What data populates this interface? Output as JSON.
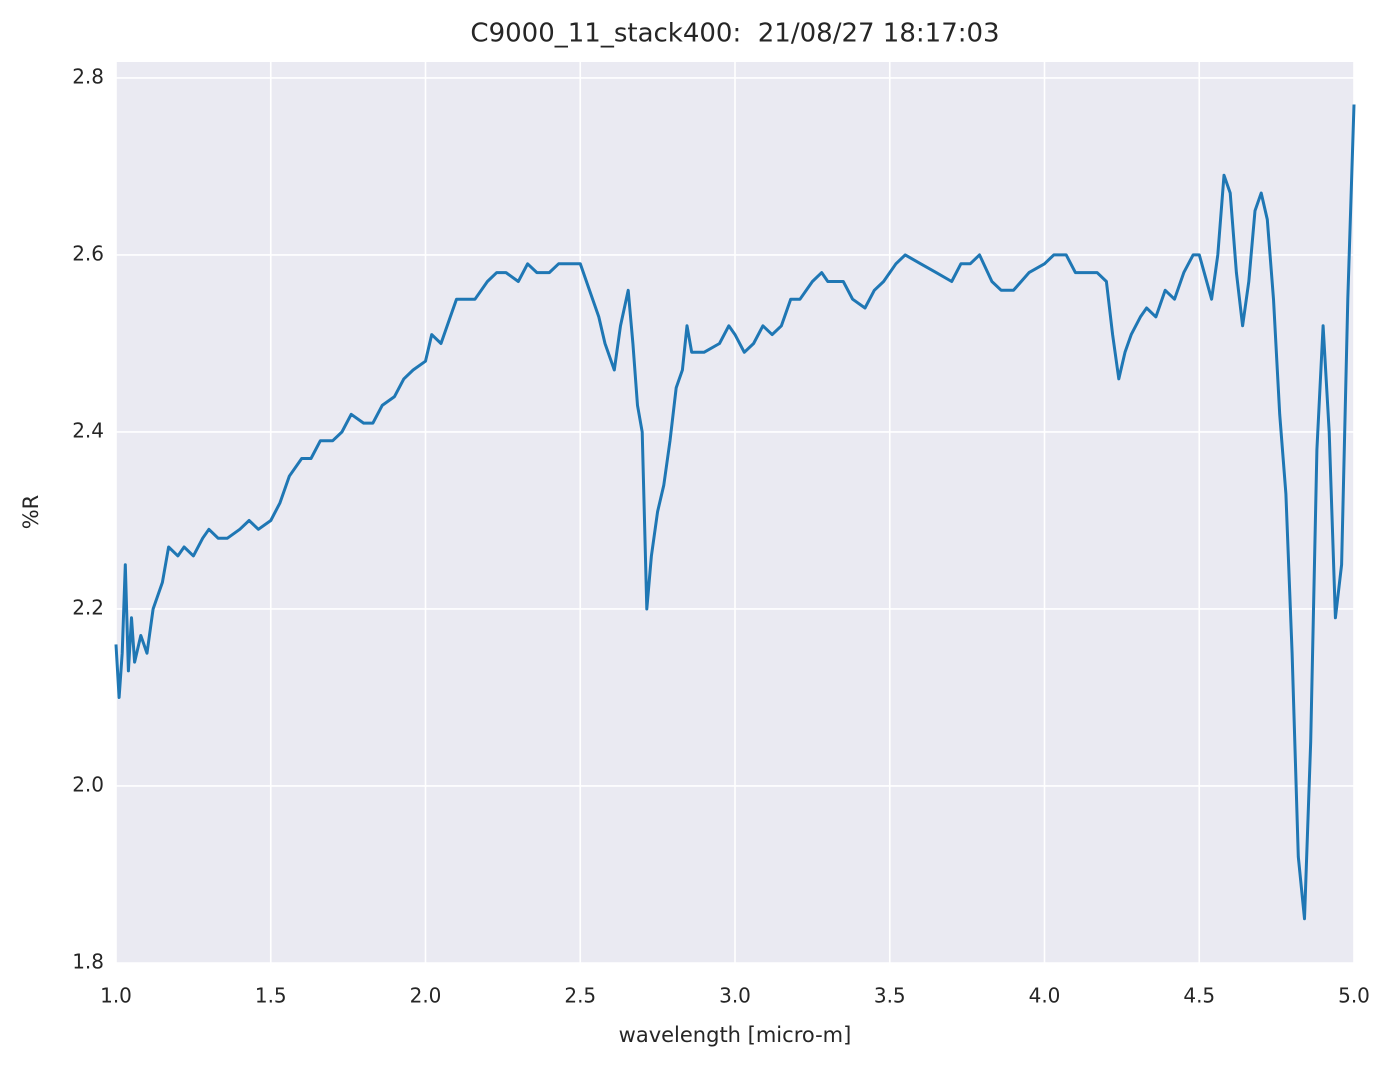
{
  "chart_data": {
    "type": "line",
    "title": "C9000_11_stack400:  21/08/27 18:17:03",
    "xlabel": "wavelength [micro-m]",
    "ylabel": "%R",
    "color": "#1f77b4",
    "grid": true,
    "xlim": [
      1.0,
      5.0
    ],
    "ylim": [
      1.8,
      2.818
    ],
    "xticks": [
      {
        "value": 1.0,
        "label": "1.0"
      },
      1.5,
      {
        "value": 2.0,
        "label": "2.0"
      },
      2.5,
      {
        "value": 3.0,
        "label": "3.0"
      },
      3.5,
      {
        "value": 4.0,
        "label": "4.0"
      },
      4.5,
      {
        "value": 5.0,
        "label": "5.0"
      }
    ],
    "yticks": [
      1.8,
      {
        "value": 2.0,
        "label": "2.0"
      },
      2.2,
      2.4,
      2.6,
      2.8
    ],
    "x": [
      1.0,
      1.01,
      1.02,
      1.03,
      1.04,
      1.05,
      1.06,
      1.08,
      1.1,
      1.12,
      1.15,
      1.17,
      1.2,
      1.22,
      1.25,
      1.28,
      1.3,
      1.33,
      1.36,
      1.4,
      1.43,
      1.46,
      1.5,
      1.53,
      1.56,
      1.6,
      1.63,
      1.66,
      1.7,
      1.73,
      1.76,
      1.8,
      1.83,
      1.86,
      1.9,
      1.93,
      1.96,
      2.0,
      2.02,
      2.05,
      2.08,
      2.1,
      2.13,
      2.16,
      2.2,
      2.23,
      2.26,
      2.3,
      2.33,
      2.36,
      2.4,
      2.43,
      2.46,
      2.5,
      2.53,
      2.56,
      2.58,
      2.61,
      2.63,
      2.655,
      2.67,
      2.685,
      2.7,
      2.715,
      2.73,
      2.75,
      2.77,
      2.79,
      2.81,
      2.83,
      2.845,
      2.86,
      2.9,
      2.95,
      2.98,
      3.0,
      3.03,
      3.06,
      3.09,
      3.12,
      3.15,
      3.18,
      3.21,
      3.25,
      3.28,
      3.3,
      3.35,
      3.38,
      3.42,
      3.45,
      3.48,
      3.52,
      3.55,
      3.6,
      3.65,
      3.7,
      3.73,
      3.76,
      3.79,
      3.83,
      3.86,
      3.9,
      3.95,
      4.0,
      4.03,
      4.07,
      4.1,
      4.13,
      4.17,
      4.2,
      4.22,
      4.24,
      4.26,
      4.28,
      4.31,
      4.33,
      4.36,
      4.39,
      4.42,
      4.45,
      4.48,
      4.5,
      4.54,
      4.56,
      4.58,
      4.6,
      4.62,
      4.64,
      4.66,
      4.68,
      4.7,
      4.72,
      4.74,
      4.76,
      4.78,
      4.8,
      4.82,
      4.84,
      4.86,
      4.88,
      4.9,
      4.92,
      4.94,
      4.96,
      4.98,
      5.0
    ],
    "values": [
      2.16,
      2.1,
      2.15,
      2.25,
      2.13,
      2.19,
      2.14,
      2.17,
      2.15,
      2.2,
      2.23,
      2.27,
      2.26,
      2.27,
      2.26,
      2.28,
      2.29,
      2.28,
      2.28,
      2.29,
      2.3,
      2.29,
      2.3,
      2.32,
      2.35,
      2.37,
      2.37,
      2.39,
      2.39,
      2.4,
      2.42,
      2.41,
      2.41,
      2.43,
      2.44,
      2.46,
      2.47,
      2.48,
      2.51,
      2.5,
      2.53,
      2.55,
      2.55,
      2.55,
      2.57,
      2.58,
      2.58,
      2.57,
      2.59,
      2.58,
      2.58,
      2.59,
      2.59,
      2.59,
      2.56,
      2.53,
      2.5,
      2.47,
      2.52,
      2.56,
      2.5,
      2.43,
      2.4,
      2.2,
      2.26,
      2.31,
      2.34,
      2.39,
      2.45,
      2.47,
      2.52,
      2.49,
      2.49,
      2.5,
      2.52,
      2.51,
      2.49,
      2.5,
      2.52,
      2.51,
      2.52,
      2.55,
      2.55,
      2.57,
      2.58,
      2.57,
      2.57,
      2.55,
      2.54,
      2.56,
      2.57,
      2.59,
      2.6,
      2.59,
      2.58,
      2.57,
      2.59,
      2.59,
      2.6,
      2.57,
      2.56,
      2.56,
      2.58,
      2.59,
      2.6,
      2.6,
      2.58,
      2.58,
      2.58,
      2.57,
      2.51,
      2.46,
      2.49,
      2.51,
      2.53,
      2.54,
      2.53,
      2.56,
      2.55,
      2.58,
      2.6,
      2.6,
      2.55,
      2.6,
      2.69,
      2.67,
      2.58,
      2.52,
      2.57,
      2.65,
      2.67,
      2.64,
      2.55,
      2.42,
      2.33,
      2.15,
      1.92,
      1.85,
      2.05,
      2.38,
      2.52,
      2.4,
      2.19,
      2.25,
      2.55,
      2.77
    ]
  }
}
